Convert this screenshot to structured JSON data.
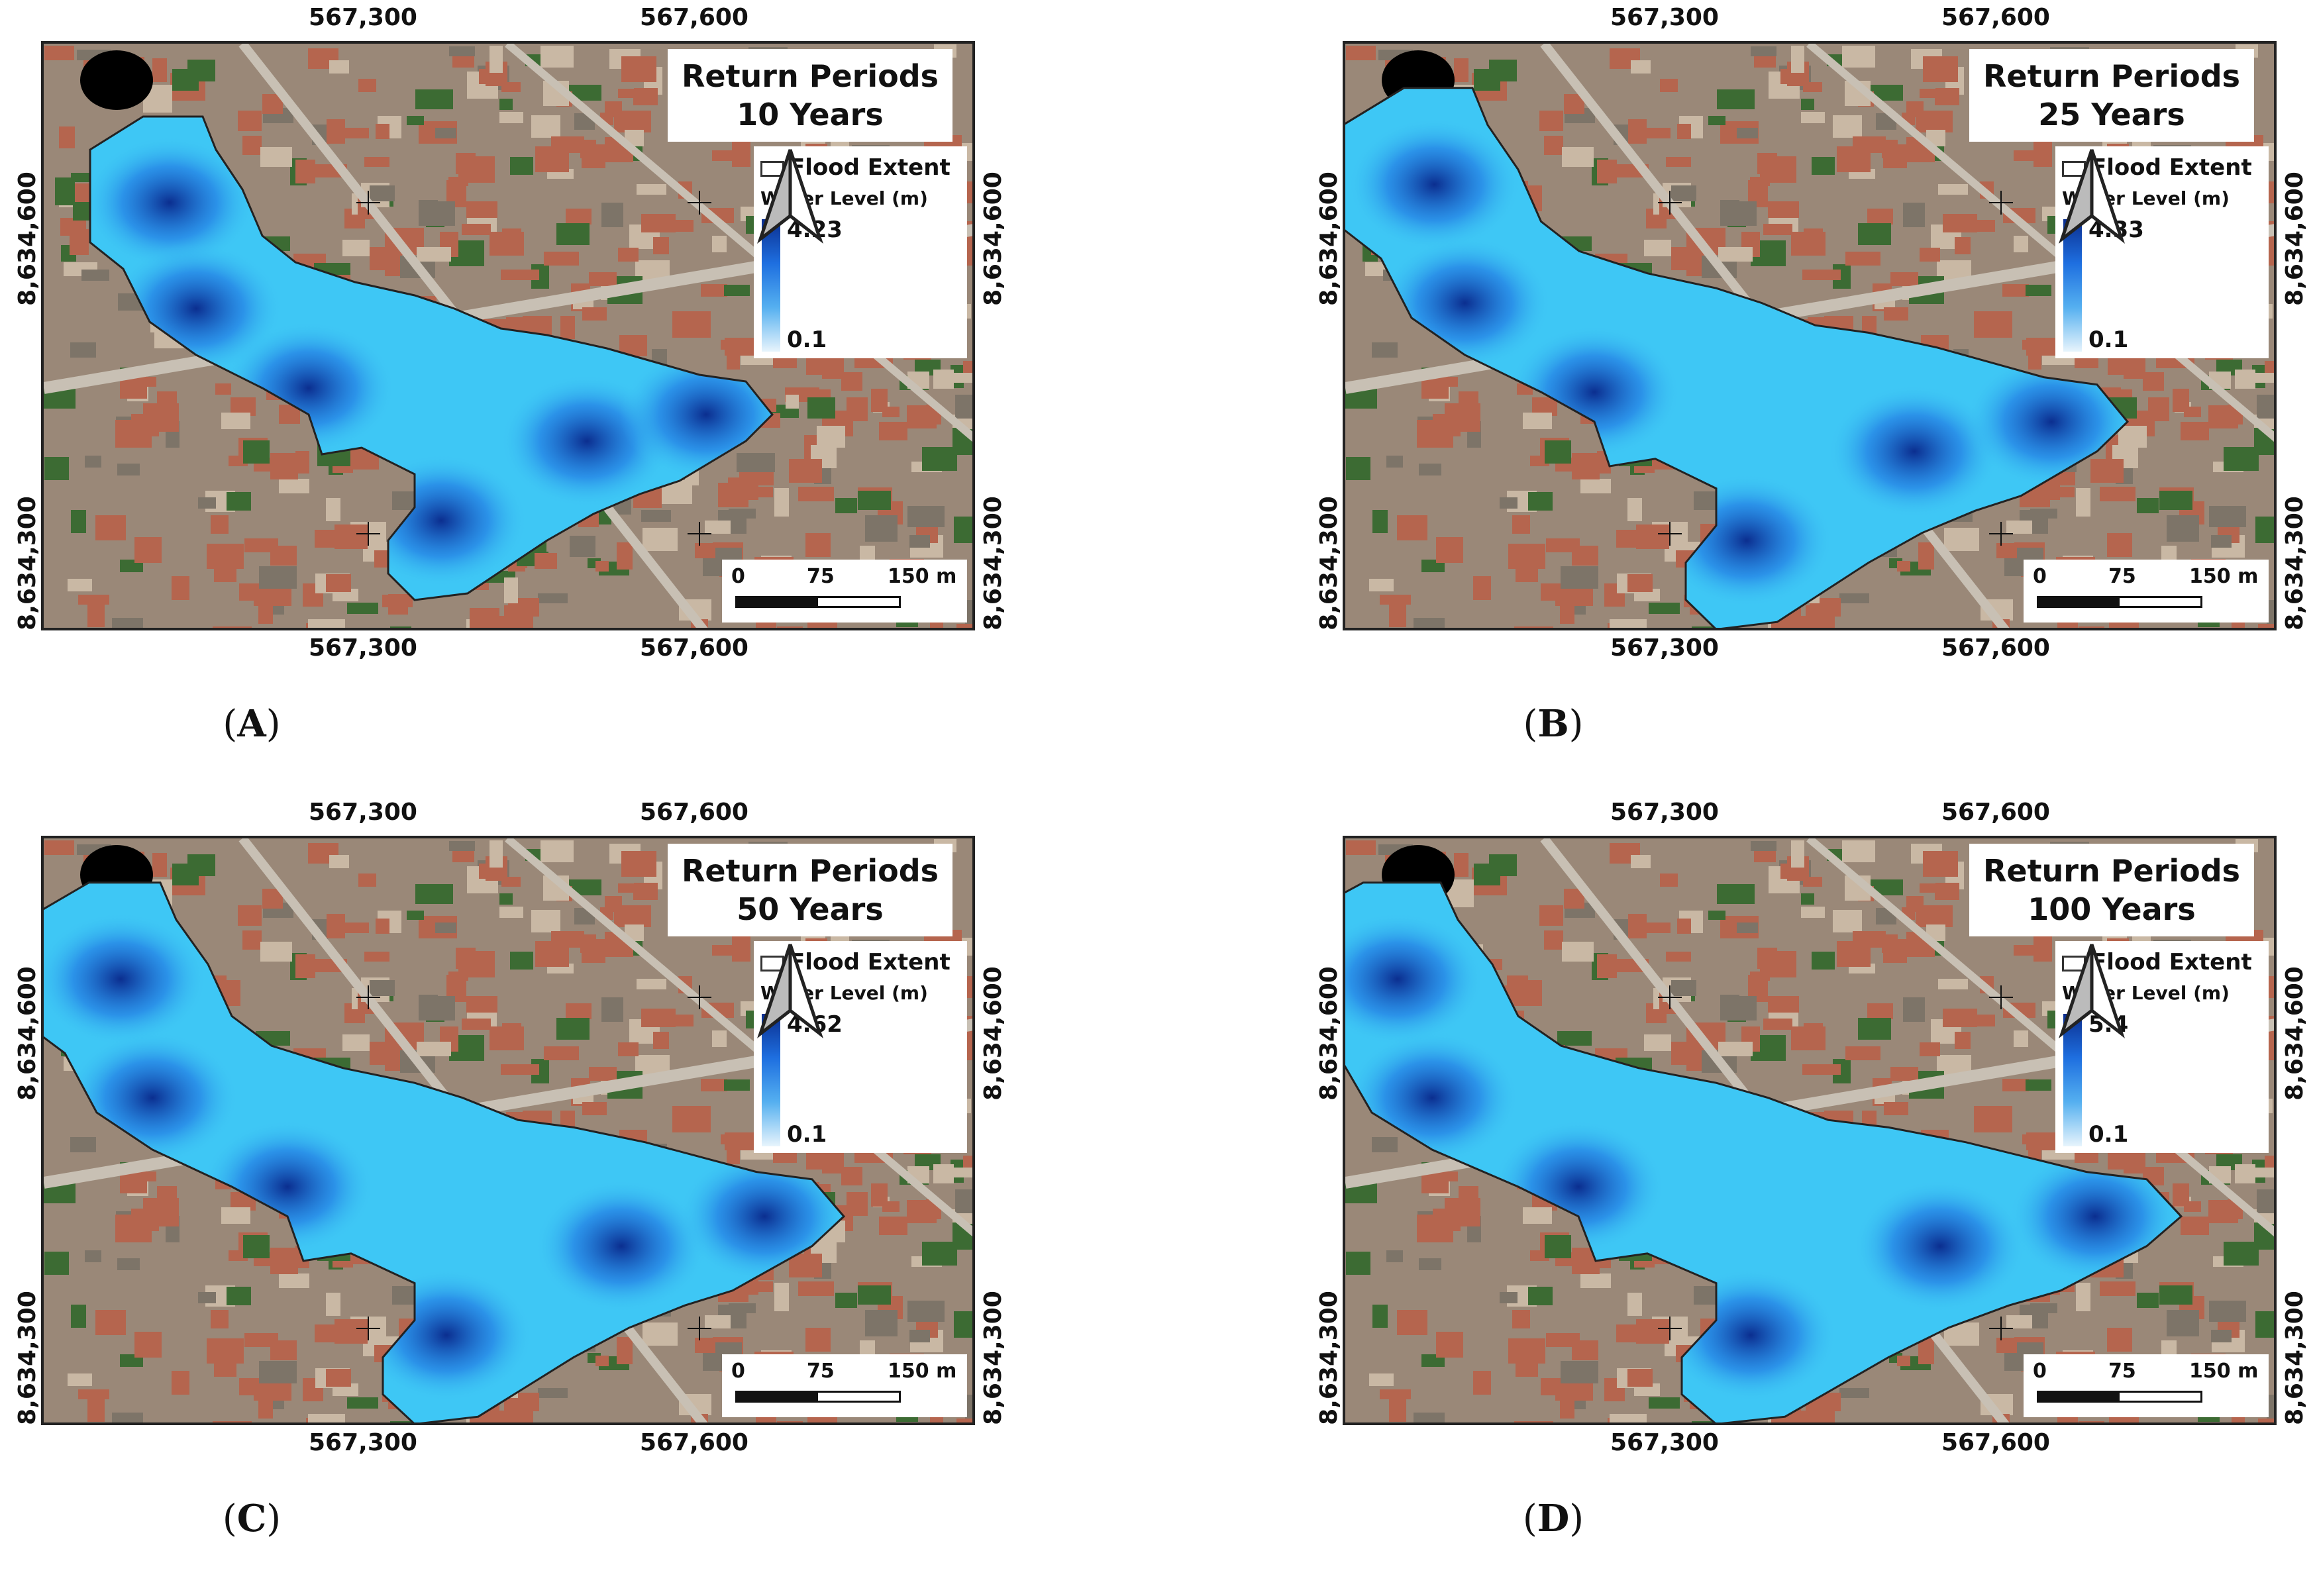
{
  "colors": {
    "water_deep": "#0b2e8f",
    "water_mid": "#1e6fe0",
    "water_shallow": "#3ec7f5",
    "water_min": "#e8f4fc",
    "imagery_roof": "#b5654e",
    "imagery_vegetation": "#3c6b33"
  },
  "shared": {
    "flood_extent_label": "Flood Extent",
    "water_level_label": "Water Level (m)",
    "scale_labels": [
      "0",
      "75",
      "150 m"
    ],
    "coords": {
      "easting_left": "567,300",
      "easting_right": "567,600",
      "northing_top": "8,634,600",
      "northing_bottom": "8,634,300"
    },
    "north_arrow_icon": "north-arrow-icon"
  },
  "panels": [
    {
      "id": "A",
      "title_line1": "Return Periods",
      "title_line2": "10 Years",
      "max": "4.23",
      "min": "0.1",
      "label": "A",
      "extent": 1.0
    },
    {
      "id": "B",
      "title_line1": "Return Periods",
      "title_line2": "25 Years",
      "max": "4.33",
      "min": "0.1",
      "label": "B",
      "extent": 1.15
    },
    {
      "id": "C",
      "title_line1": "Return Periods",
      "title_line2": "50 Years",
      "max": "4.62",
      "min": "0.1",
      "label": "C",
      "extent": 1.2
    },
    {
      "id": "D",
      "title_line1": "Return Periods",
      "title_line2": "100 Years",
      "max": "5.4",
      "min": "0.1",
      "label": "D",
      "extent": 1.3
    }
  ]
}
